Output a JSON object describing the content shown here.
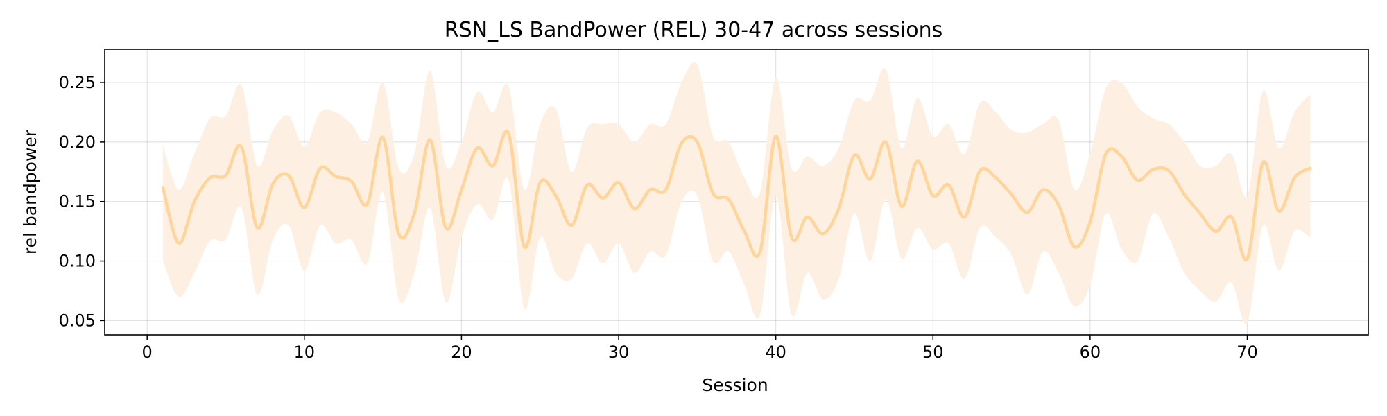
{
  "chart_data": {
    "type": "line",
    "title": "RSN_LS BandPower (REL) 30-47 across sessions",
    "xlabel": "Session",
    "ylabel": "rel bandpower",
    "xlim": [
      -2.7,
      77.7
    ],
    "ylim": [
      0.038,
      0.278
    ],
    "xticks": [
      0,
      10,
      20,
      30,
      40,
      50,
      60,
      70
    ],
    "yticks": [
      0.05,
      0.1,
      0.15,
      0.2,
      0.25
    ],
    "ytick_labels": [
      "0.05",
      "0.10",
      "0.15",
      "0.20",
      "0.25"
    ],
    "grid": true,
    "line_color": "#ffd59b",
    "band_color": "#fdf0e2",
    "series": [
      {
        "x": [
          1,
          2,
          3,
          4,
          5,
          6,
          7,
          8,
          9,
          10,
          11,
          12,
          13,
          14,
          15,
          16,
          17,
          18,
          19,
          20,
          21,
          22,
          23,
          24,
          25,
          26,
          27,
          28,
          29,
          30,
          31,
          32,
          33,
          34,
          35,
          36,
          37,
          38,
          39,
          40,
          41,
          42,
          43,
          44,
          45,
          46,
          47,
          48,
          49,
          50,
          51,
          52,
          53,
          54,
          55,
          56,
          57,
          58,
          59,
          60,
          61,
          62,
          63,
          64,
          65,
          66,
          67,
          68,
          69,
          70,
          71,
          72,
          73,
          74
        ],
        "y": [
          0.162,
          0.115,
          0.15,
          0.17,
          0.172,
          0.196,
          0.128,
          0.165,
          0.172,
          0.145,
          0.178,
          0.171,
          0.167,
          0.148,
          0.204,
          0.123,
          0.14,
          0.202,
          0.128,
          0.16,
          0.195,
          0.18,
          0.207,
          0.112,
          0.166,
          0.155,
          0.13,
          0.164,
          0.153,
          0.166,
          0.144,
          0.16,
          0.16,
          0.199,
          0.2,
          0.157,
          0.152,
          0.125,
          0.108,
          0.205,
          0.12,
          0.137,
          0.123,
          0.144,
          0.189,
          0.169,
          0.2,
          0.146,
          0.184,
          0.155,
          0.164,
          0.137,
          0.176,
          0.17,
          0.156,
          0.141,
          0.16,
          0.147,
          0.112,
          0.133,
          0.19,
          0.188,
          0.168,
          0.177,
          0.176,
          0.156,
          0.14,
          0.125,
          0.137,
          0.102,
          0.183,
          0.142,
          0.17,
          0.178
        ],
        "lower": [
          0.1,
          0.07,
          0.09,
          0.117,
          0.118,
          0.145,
          0.072,
          0.118,
          0.13,
          0.092,
          0.13,
          0.115,
          0.118,
          0.098,
          0.158,
          0.068,
          0.09,
          0.145,
          0.065,
          0.12,
          0.148,
          0.135,
          0.168,
          0.06,
          0.12,
          0.09,
          0.085,
          0.115,
          0.098,
          0.115,
          0.09,
          0.108,
          0.105,
          0.15,
          0.155,
          0.1,
          0.108,
          0.08,
          0.055,
          0.155,
          0.055,
          0.09,
          0.068,
          0.085,
          0.14,
          0.1,
          0.152,
          0.102,
          0.128,
          0.11,
          0.115,
          0.085,
          0.128,
          0.12,
          0.105,
          0.072,
          0.108,
          0.09,
          0.062,
          0.08,
          0.14,
          0.11,
          0.1,
          0.14,
          0.12,
          0.09,
          0.075,
          0.066,
          0.082,
          0.048,
          0.13,
          0.092,
          0.125,
          0.12
        ],
        "upper": [
          0.198,
          0.16,
          0.19,
          0.22,
          0.222,
          0.248,
          0.18,
          0.21,
          0.222,
          0.196,
          0.225,
          0.225,
          0.215,
          0.2,
          0.25,
          0.178,
          0.19,
          0.26,
          0.18,
          0.2,
          0.242,
          0.225,
          0.247,
          0.16,
          0.215,
          0.228,
          0.175,
          0.212,
          0.215,
          0.215,
          0.2,
          0.215,
          0.215,
          0.25,
          0.265,
          0.205,
          0.2,
          0.17,
          0.158,
          0.254,
          0.178,
          0.188,
          0.18,
          0.195,
          0.235,
          0.235,
          0.261,
          0.195,
          0.237,
          0.205,
          0.215,
          0.19,
          0.233,
          0.225,
          0.21,
          0.208,
          0.215,
          0.218,
          0.16,
          0.19,
          0.245,
          0.25,
          0.23,
          0.22,
          0.215,
          0.2,
          0.18,
          0.18,
          0.19,
          0.155,
          0.243,
          0.195,
          0.225,
          0.24
        ]
      }
    ]
  }
}
